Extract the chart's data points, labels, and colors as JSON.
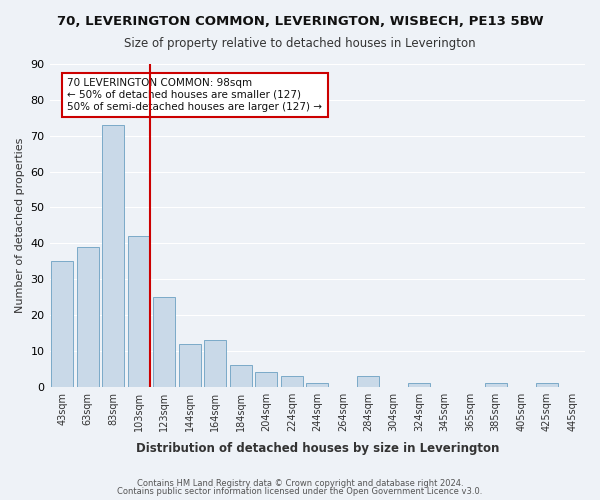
{
  "title1": "70, LEVERINGTON COMMON, LEVERINGTON, WISBECH, PE13 5BW",
  "title2": "Size of property relative to detached houses in Leverington",
  "xlabel": "Distribution of detached houses by size in Leverington",
  "ylabel": "Number of detached properties",
  "bin_labels": [
    "43sqm",
    "63sqm",
    "83sqm",
    "103sqm",
    "123sqm",
    "144sqm",
    "164sqm",
    "184sqm",
    "204sqm",
    "224sqm",
    "244sqm",
    "264sqm",
    "284sqm",
    "304sqm",
    "324sqm",
    "345sqm",
    "365sqm",
    "385sqm",
    "405sqm",
    "425sqm",
    "445sqm"
  ],
  "bar_values": [
    35,
    39,
    73,
    42,
    25,
    12,
    13,
    6,
    4,
    3,
    1,
    0,
    3,
    0,
    1,
    0,
    0,
    1,
    0,
    1,
    0
  ],
  "bar_color": "#c9d9e8",
  "bar_edge_color": "#7aaac8",
  "vline_x_index": 3,
  "vline_color": "#cc0000",
  "annotation_text": "70 LEVERINGTON COMMON: 98sqm\n← 50% of detached houses are smaller (127)\n50% of semi-detached houses are larger (127) →",
  "annotation_box_color": "#ffffff",
  "annotation_box_edge": "#cc0000",
  "ylim": [
    0,
    90
  ],
  "yticks": [
    0,
    10,
    20,
    30,
    40,
    50,
    60,
    70,
    80,
    90
  ],
  "footer1": "Contains HM Land Registry data © Crown copyright and database right 2024.",
  "footer2": "Contains public sector information licensed under the Open Government Licence v3.0.",
  "background_color": "#eef2f7",
  "grid_color": "#ffffff"
}
